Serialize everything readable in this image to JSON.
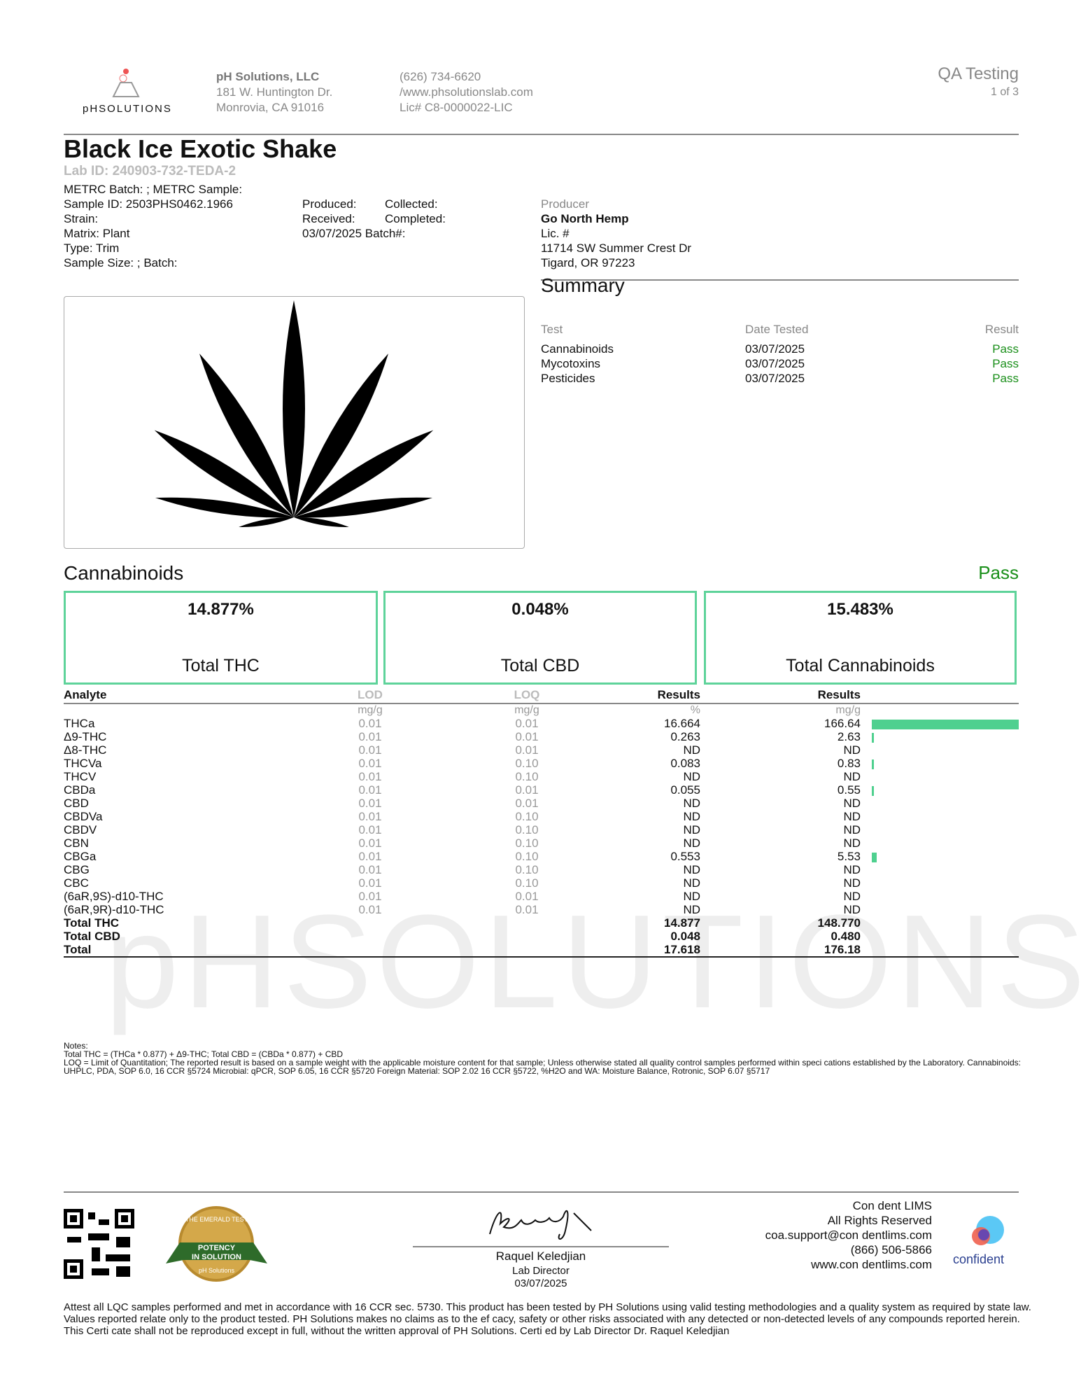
{
  "header": {
    "logo_text": "pHSOLUTIONS",
    "company": "pH Solutions, LLC",
    "address1": "181 W. Huntington Dr.",
    "address2": "Monrovia, CA 91016",
    "phone": "(626) 734-6620",
    "website": "/www.phsolutionslab.com",
    "license": "Lic# C8-0000022-LIC",
    "doc_type": "QA Testing",
    "page": "1 of 3"
  },
  "sample": {
    "name": "Black Ice Exotic Shake",
    "lab_id": "Lab ID: 240903-732-TEDA-2",
    "meta": [
      "METRC Batch: ; METRC Sample:",
      "Sample ID: 2503PHS0462.1966",
      "Strain:",
      "Matrix: Plant",
      "Type: Trim",
      "Sample Size: ; Batch:"
    ],
    "dates": [
      [
        "Produced:",
        "Collected:"
      ],
      [
        "Received:",
        "Completed:"
      ],
      [
        "03/07/2025 Batch#:"
      ]
    ]
  },
  "producer": {
    "label": "Producer",
    "name": "Go North Hemp",
    "license": "Lic. #",
    "address1": "11714 SW Summer Crest Dr",
    "address2": "Tigard, OR 97223"
  },
  "summary": {
    "title": "Summary",
    "columns": [
      "Test",
      "Date Tested",
      "Result"
    ],
    "rows": [
      [
        "Cannabinoids",
        "03/07/2025",
        "Pass"
      ],
      [
        "Mycotoxins",
        "03/07/2025",
        "Pass"
      ],
      [
        "Pesticides",
        "03/07/2025",
        "Pass"
      ]
    ]
  },
  "cannabinoids": {
    "title": "Cannabinoids",
    "status": "Pass",
    "totals": [
      {
        "value": "14.877%",
        "label": "Total THC"
      },
      {
        "value": "0.048%",
        "label": "Total CBD"
      },
      {
        "value": "15.483%",
        "label": "Total Cannabinoids"
      }
    ],
    "columns": [
      "Analyte",
      "LOD",
      "LOQ",
      "Results",
      "Results"
    ],
    "units": [
      "mg/g",
      "mg/g",
      "%",
      "mg/g"
    ],
    "rows": [
      [
        "THCa",
        "0.01",
        "0.01",
        "16.664",
        "166.64"
      ],
      [
        "Δ9-THC",
        "0.01",
        "0.01",
        "0.263",
        "2.63"
      ],
      [
        "Δ8-THC",
        "0.01",
        "0.01",
        "ND",
        "ND"
      ],
      [
        "THCVa",
        "0.01",
        "0.10",
        "0.083",
        "0.83"
      ],
      [
        "THCV",
        "0.01",
        "0.10",
        "ND",
        "ND"
      ],
      [
        "CBDa",
        "0.01",
        "0.01",
        "0.055",
        "0.55"
      ],
      [
        "CBD",
        "0.01",
        "0.01",
        "ND",
        "ND"
      ],
      [
        "CBDVa",
        "0.01",
        "0.10",
        "ND",
        "ND"
      ],
      [
        "CBDV",
        "0.01",
        "0.10",
        "ND",
        "ND"
      ],
      [
        "CBN",
        "0.01",
        "0.10",
        "ND",
        "ND"
      ],
      [
        "CBGa",
        "0.01",
        "0.10",
        "0.553",
        "5.53"
      ],
      [
        "CBG",
        "0.01",
        "0.10",
        "ND",
        "ND"
      ],
      [
        "CBC",
        "0.01",
        "0.10",
        "ND",
        "ND"
      ],
      [
        "(6aR,9S)-d10-THC",
        "0.01",
        "0.01",
        "ND",
        "ND"
      ],
      [
        "(6aR,9R)-d10-THC",
        "0.01",
        "0.01",
        "ND",
        "ND"
      ]
    ],
    "total_rows": [
      [
        "Total THC",
        "14.877",
        "148.770"
      ],
      [
        "Total CBD",
        "0.048",
        "0.480"
      ],
      [
        "Total",
        "17.618",
        "176.18"
      ]
    ]
  },
  "notes": [
    "Notes:",
    "Total THC = (THCa * 0.877) + Δ9-THC; Total CBD = (CBDa * 0.877) + CBD",
    "LOQ = Limit of Quantitation; The reported result is based on a sample weight with the applicable moisture content for that sample; Unless otherwise stated all quality control samples performed within speci cations established by the Laboratory. Cannabinoids: UHPLC, PDA, SOP 6.0, 16 CCR §5724 Microbial: qPCR, SOP 6.05, 16 CCR §5720 Foreign Material: SOP 2.02 16 CCR §5722, %H2O and WA: Moisture Balance, Rotronic, SOP 6.07 §5717"
  ],
  "watermark": "pHSOLUTIONS",
  "footer": {
    "badge": [
      "THE EMERALD TEST",
      "POTENCY",
      "IN SOLUTION",
      "pH Solutions"
    ],
    "signer": "Raquel Keledjian",
    "signer_title": "Lab Director",
    "sign_date": "03/07/2025",
    "lims": [
      "Con dent LIMS",
      "All Rights Reserved",
      "coa.support@con dentlims.com",
      "(866) 506-5866",
      "www.con dentlims.com"
    ],
    "lims_logo": "confident",
    "attest": "Attest all LQC samples performed and met in accordance with 16 CCR sec. 5730. This product has been tested by PH Solutions using valid testing methodologies and a quality system as required by state law. Values reported relate only to the product tested. PH Solutions makes no claims as to the ef cacy, safety or other risks associated with any detected or non-detected levels of any compounds reported herein. This Certi cate shall not be reproduced except in full, without the written approval of PH Solutions. Certi ed by Lab Director Dr. Raquel Keledjian"
  }
}
